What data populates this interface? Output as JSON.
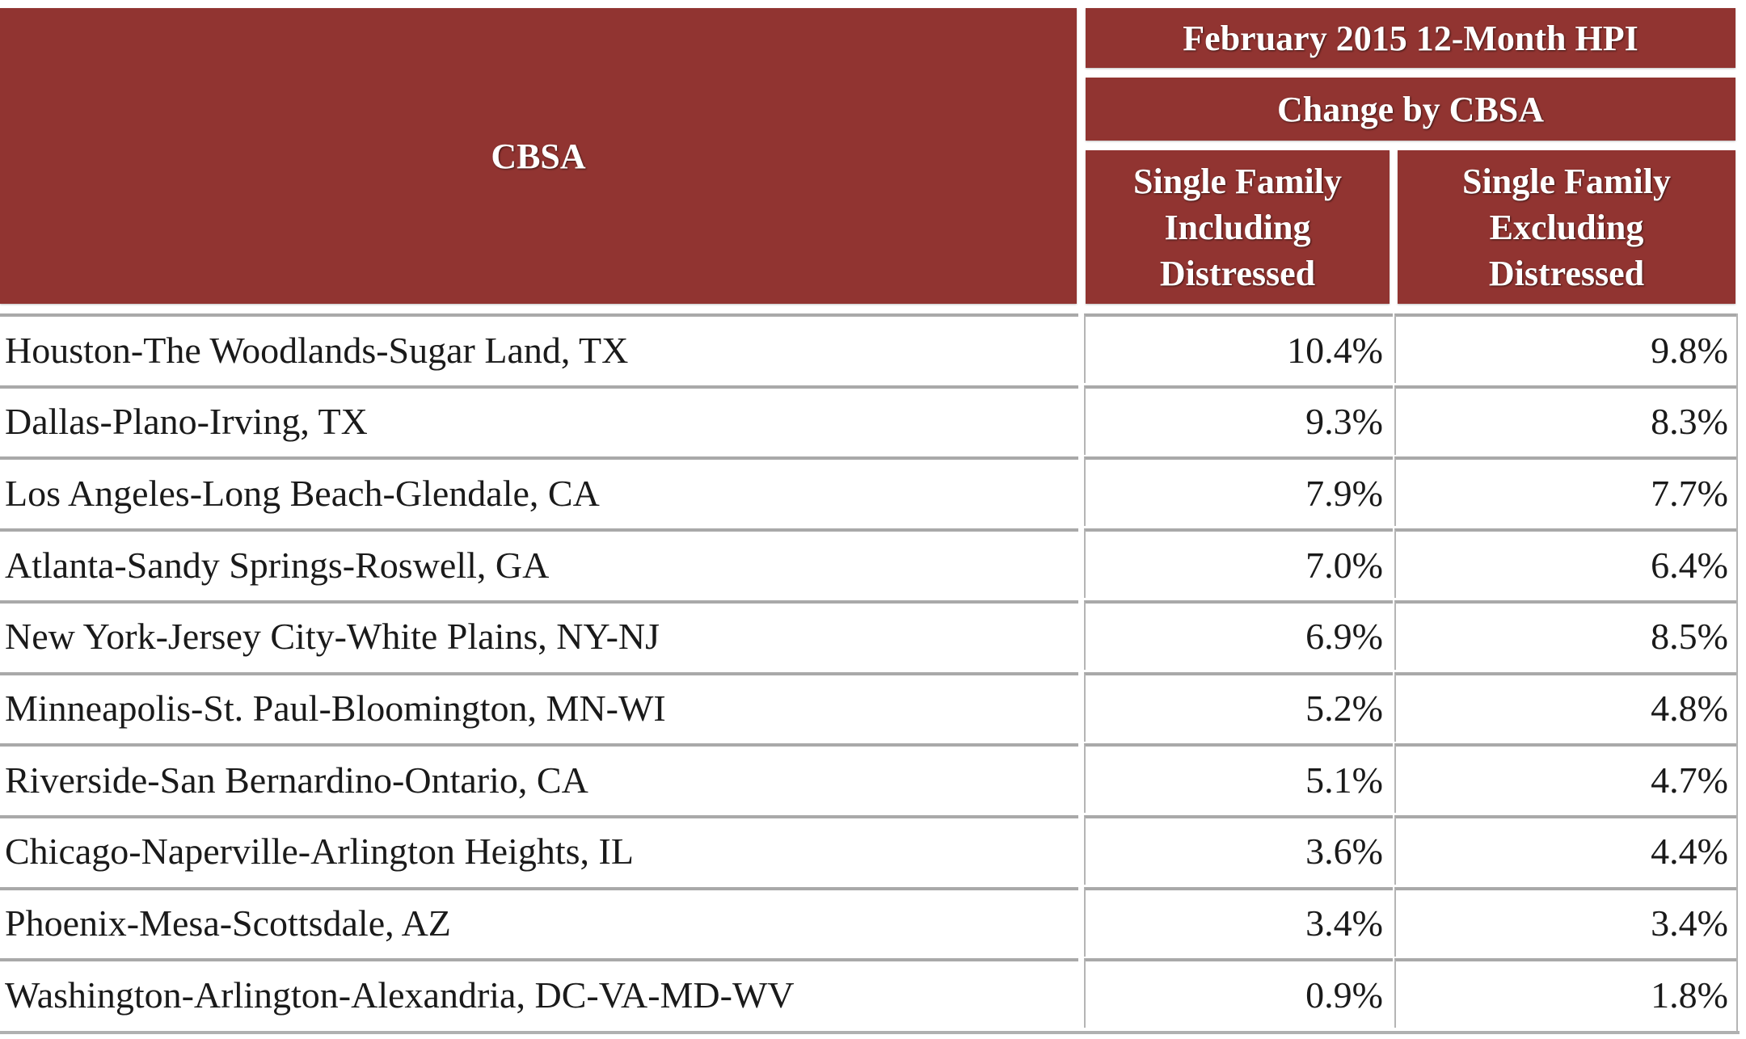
{
  "header": {
    "cbsa": "CBSA",
    "title": "February 2015 12-Month HPI",
    "subtitle": "Change by CBSA",
    "col_including": [
      "Single Family",
      "Including",
      "Distressed"
    ],
    "col_excluding": [
      "Single Family",
      "Excluding",
      "Distressed"
    ]
  },
  "colors": {
    "header_bg": "#913431",
    "header_text": "#ffffff",
    "body_text": "#1a1a1a",
    "border": "#a9a9a9"
  },
  "rows": [
    {
      "cbsa": "Houston-The Woodlands-Sugar Land, TX",
      "including": "10.4%",
      "excluding": "9.8%"
    },
    {
      "cbsa": "Dallas-Plano-Irving, TX",
      "including": "9.3%",
      "excluding": "8.3%"
    },
    {
      "cbsa": "Los Angeles-Long Beach-Glendale, CA",
      "including": "7.9%",
      "excluding": "7.7%"
    },
    {
      "cbsa": "Atlanta-Sandy Springs-Roswell, GA",
      "including": "7.0%",
      "excluding": "6.4%"
    },
    {
      "cbsa": "New York-Jersey City-White Plains, NY-NJ",
      "including": "6.9%",
      "excluding": "8.5%"
    },
    {
      "cbsa": "Minneapolis-St. Paul-Bloomington, MN-WI",
      "including": "5.2%",
      "excluding": "4.8%"
    },
    {
      "cbsa": "Riverside-San Bernardino-Ontario, CA",
      "including": "5.1%",
      "excluding": "4.7%"
    },
    {
      "cbsa": "Chicago-Naperville-Arlington Heights, IL",
      "including": "3.6%",
      "excluding": "4.4%"
    },
    {
      "cbsa": "Phoenix-Mesa-Scottsdale, AZ",
      "including": "3.4%",
      "excluding": "3.4%"
    },
    {
      "cbsa": "Washington-Arlington-Alexandria, DC-VA-MD-WV",
      "including": "0.9%",
      "excluding": "1.8%"
    }
  ]
}
